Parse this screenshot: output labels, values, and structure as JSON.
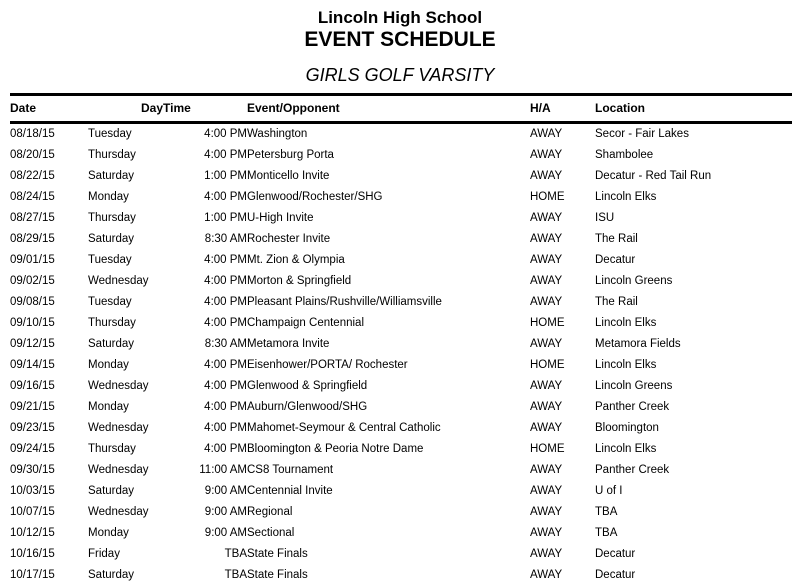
{
  "header": {
    "school": "Lincoln High School",
    "title": "EVENT SCHEDULE",
    "subtitle": "GIRLS GOLF VARSITY"
  },
  "table": {
    "columns": {
      "date": "Date",
      "day": "Day",
      "time": "Time",
      "event": "Event/Opponent",
      "ha": "H/A",
      "location": "Location"
    },
    "rows": [
      [
        "08/18/15",
        "Tuesday",
        "4:00 PM",
        "Washington",
        "AWAY",
        "Secor - Fair Lakes"
      ],
      [
        "08/20/15",
        "Thursday",
        "4:00 PM",
        "Petersburg Porta",
        "AWAY",
        "Shambolee"
      ],
      [
        "08/22/15",
        "Saturday",
        "1:00 PM",
        "Monticello Invite",
        "AWAY",
        "Decatur - Red Tail Run"
      ],
      [
        "08/24/15",
        "Monday",
        "4:00 PM",
        "Glenwood/Rochester/SHG",
        "HOME",
        "Lincoln Elks"
      ],
      [
        "08/27/15",
        "Thursday",
        "1:00 PM",
        "U-High Invite",
        "AWAY",
        "ISU"
      ],
      [
        "08/29/15",
        "Saturday",
        "8:30 AM",
        "Rochester Invite",
        "AWAY",
        "The Rail"
      ],
      [
        "09/01/15",
        "Tuesday",
        "4:00 PM",
        "Mt. Zion & Olympia",
        "AWAY",
        "Decatur"
      ],
      [
        "09/02/15",
        "Wednesday",
        "4:00 PM",
        "Morton & Springfield",
        "AWAY",
        "Lincoln Greens"
      ],
      [
        "09/08/15",
        "Tuesday",
        "4:00 PM",
        "Pleasant Plains/Rushville/Williamsville",
        "AWAY",
        "The Rail"
      ],
      [
        "09/10/15",
        "Thursday",
        "4:00 PM",
        "Champaign Centennial",
        "HOME",
        "Lincoln Elks"
      ],
      [
        "09/12/15",
        "Saturday",
        "8:30 AM",
        "Metamora Invite",
        "AWAY",
        "Metamora Fields"
      ],
      [
        "09/14/15",
        "Monday",
        "4:00 PM",
        "Eisenhower/PORTA/ Rochester",
        "HOME",
        "Lincoln Elks"
      ],
      [
        "09/16/15",
        "Wednesday",
        "4:00 PM",
        "Glenwood & Springfield",
        "AWAY",
        "Lincoln Greens"
      ],
      [
        "09/21/15",
        "Monday",
        "4:00 PM",
        "Auburn/Glenwood/SHG",
        "AWAY",
        "Panther Creek"
      ],
      [
        "09/23/15",
        "Wednesday",
        "4:00 PM",
        "Mahomet-Seymour & Central Catholic",
        "AWAY",
        "Bloomington"
      ],
      [
        "09/24/15",
        "Thursday",
        "4:00 PM",
        "Bloomington & Peoria Notre Dame",
        "HOME",
        "Lincoln Elks"
      ],
      [
        "09/30/15",
        "Wednesday",
        "11:00 AM",
        "CS8 Tournament",
        "AWAY",
        "Panther Creek"
      ],
      [
        "10/03/15",
        "Saturday",
        "9:00 AM",
        "Centennial Invite",
        "AWAY",
        "U of I"
      ],
      [
        "10/07/15",
        "Wednesday",
        "9:00 AM",
        "Regional",
        "AWAY",
        "TBA"
      ],
      [
        "10/12/15",
        "Monday",
        "9:00 AM",
        "Sectional",
        "AWAY",
        "TBA"
      ],
      [
        "10/16/15",
        "Friday",
        "TBA",
        "State Finals",
        "AWAY",
        "Decatur"
      ],
      [
        "10/17/15",
        "Saturday",
        "TBA",
        "State Finals",
        "AWAY",
        "Decatur"
      ]
    ]
  },
  "colors": {
    "text": "#000000",
    "background": "#ffffff",
    "rule": "#000000"
  }
}
